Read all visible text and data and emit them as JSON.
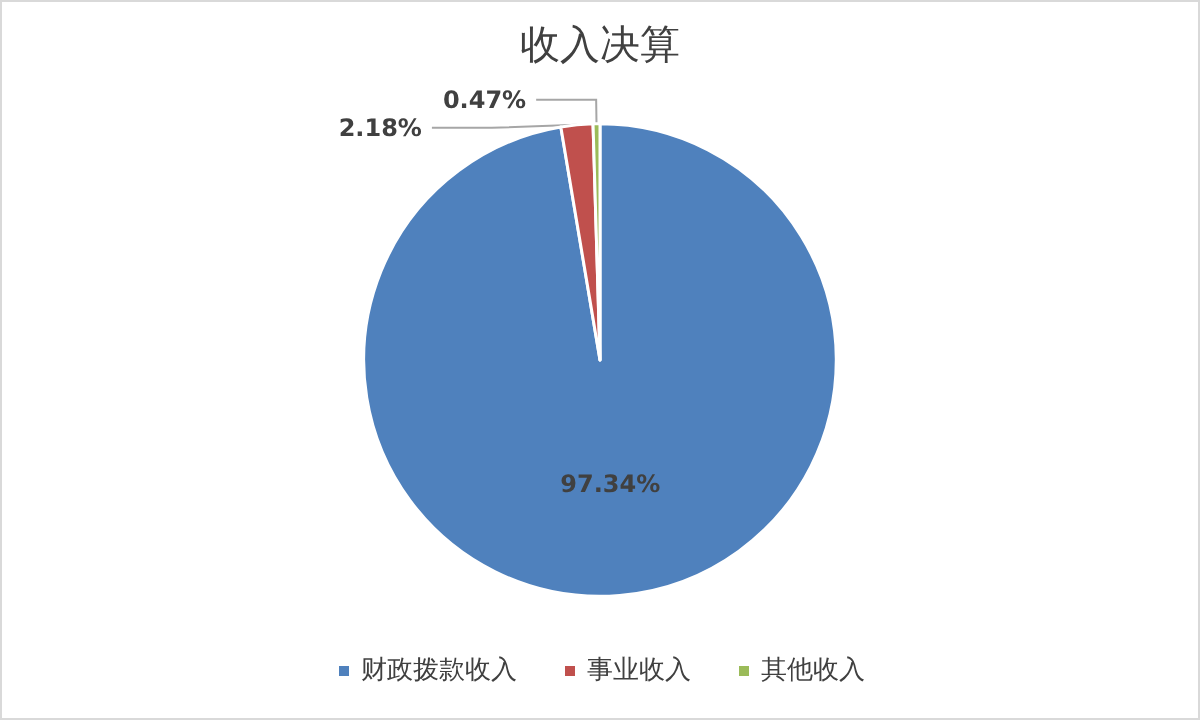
{
  "chart_data": {
    "type": "pie",
    "title": "收入决算",
    "categories": [
      "财政拨款收入",
      "事业收入",
      "其他收入"
    ],
    "values": [
      97.34,
      2.18,
      0.47
    ],
    "colors": [
      "#4f81bd",
      "#c0504d",
      "#9bbb59"
    ],
    "value_labels": [
      "97.34%",
      "2.18%",
      "0.47%"
    ],
    "legend": "bottom"
  }
}
